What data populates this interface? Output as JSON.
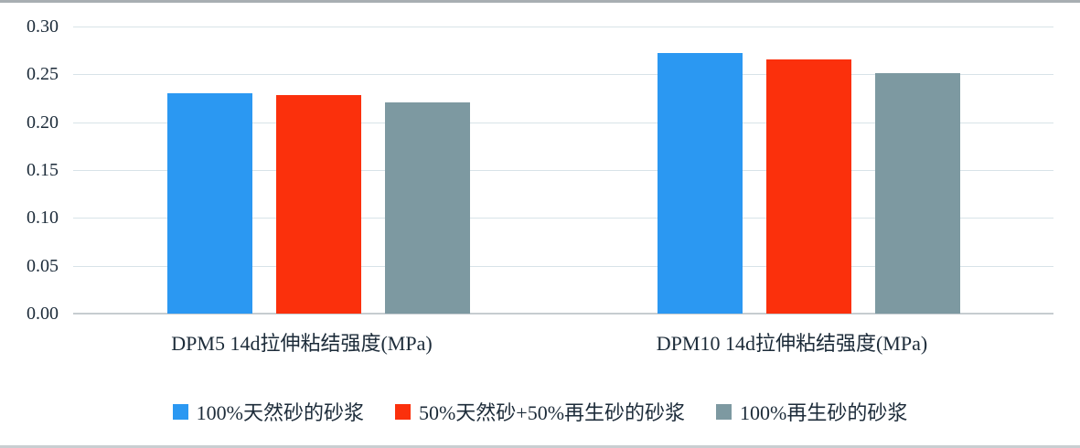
{
  "chart_data": {
    "type": "bar",
    "title": "",
    "xlabel": "",
    "ylabel": "",
    "categories": [
      "DPM5 14d拉伸粘结强度(MPa)",
      "DPM10 14d拉伸粘结强度(MPa)"
    ],
    "series": [
      {
        "name": "100%天然砂的砂浆",
        "color": "#2b98f2",
        "values": [
          0.23,
          0.272
        ]
      },
      {
        "name": "50%天然砂+50%再生砂的砂浆",
        "color": "#fb300c",
        "values": [
          0.228,
          0.266
        ]
      },
      {
        "name": "100%再生砂的砂浆",
        "color": "#7d99a1",
        "values": [
          0.221,
          0.251
        ]
      }
    ],
    "ylim": [
      0,
      0.3
    ],
    "yticks": [
      "0.30",
      "0.25",
      "0.20",
      "0.15",
      "0.10",
      "0.05",
      "0.00"
    ],
    "ytick_values": [
      0.3,
      0.25,
      0.2,
      0.15,
      0.1,
      0.05,
      0.0
    ],
    "grid": "horizontal-on",
    "legend_position": "bottom",
    "colors": {
      "gridline": "#d8e3e8",
      "baseline": "#c6ccd0",
      "text": "#1c2b39"
    }
  }
}
